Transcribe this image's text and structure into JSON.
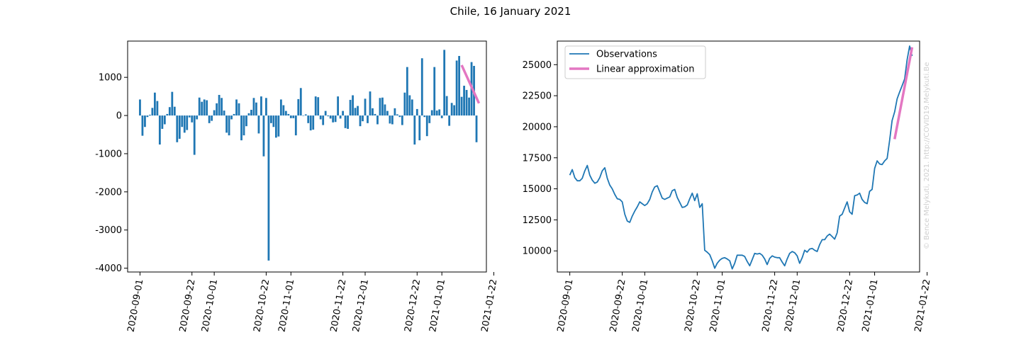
{
  "figure": {
    "title": "Chile, 16 January 2021",
    "watermark": "© Bence Melykuti, 2021. http://COVID19.Melykuti.Be"
  },
  "colors": {
    "bars": "#1f77b4",
    "observations": "#1f77b4",
    "approximation": "#e377c2"
  },
  "chart_data": [
    {
      "type": "bar",
      "ylim": [
        -4100,
        1950
      ],
      "yticks": [
        -4000,
        -3000,
        -2000,
        -1000,
        0,
        1000
      ],
      "x_start": "2020-09-01",
      "xlim": [
        "2020-08-27",
        "2021-01-19"
      ],
      "xticks": [
        "2020-09-01",
        "2020-09-22",
        "2020-10-01",
        "2020-10-22",
        "2020-11-01",
        "2020-11-22",
        "2020-12-01",
        "2020-12-22",
        "2021-01-01",
        "2021-01-22"
      ],
      "values": [
        420,
        -530,
        -300,
        -40,
        20,
        200,
        600,
        380,
        -760,
        -350,
        -230,
        40,
        220,
        620,
        230,
        -700,
        -610,
        -300,
        -450,
        -380,
        -50,
        -180,
        -1030,
        -100,
        470,
        360,
        420,
        400,
        -200,
        -140,
        140,
        320,
        540,
        460,
        130,
        -450,
        -520,
        -100,
        40,
        420,
        320,
        -650,
        -520,
        -280,
        60,
        150,
        460,
        340,
        -470,
        500,
        -1070,
        460,
        -3800,
        -200,
        -300,
        -580,
        -550,
        420,
        270,
        120,
        40,
        -70,
        -70,
        -520,
        430,
        720,
        -10,
        30,
        -200,
        -390,
        -370,
        500,
        480,
        -100,
        -250,
        120,
        -20,
        -80,
        -180,
        -170,
        500,
        -80,
        120,
        -330,
        -350,
        410,
        530,
        200,
        250,
        -280,
        -150,
        440,
        -200,
        630,
        190,
        40,
        -230,
        460,
        470,
        290,
        120,
        -210,
        -230,
        190,
        30,
        -40,
        -250,
        600,
        1270,
        530,
        420,
        -760,
        170,
        -650,
        1500,
        -40,
        -540,
        -200,
        140,
        1270,
        130,
        160,
        -70,
        1720,
        510,
        -270,
        330,
        270,
        1440,
        1560,
        490,
        780,
        670,
        470,
        1400,
        1300,
        -700
      ],
      "approximation": {
        "x_start": "2021-01-09",
        "y_start": 1320,
        "x_end": "2021-01-16",
        "y_end": 320
      }
    },
    {
      "type": "line",
      "ylim": [
        8300,
        26900
      ],
      "yticks": [
        10000,
        12500,
        15000,
        17500,
        20000,
        22500,
        25000
      ],
      "x_start": "2020-09-01",
      "xlim": [
        "2020-08-27",
        "2021-01-19"
      ],
      "xticks": [
        "2020-09-01",
        "2020-09-22",
        "2020-10-01",
        "2020-10-22",
        "2020-11-01",
        "2020-11-22",
        "2020-12-01",
        "2020-12-22",
        "2021-01-01",
        "2021-01-22"
      ],
      "values": [
        16100,
        16550,
        15900,
        15650,
        15650,
        15850,
        16450,
        16880,
        16100,
        15700,
        15450,
        15550,
        15900,
        16450,
        16700,
        15850,
        15300,
        15000,
        14550,
        14200,
        14150,
        13950,
        12950,
        12400,
        12300,
        12800,
        13200,
        13550,
        13950,
        13800,
        13650,
        13800,
        14150,
        14750,
        15150,
        15250,
        14750,
        14250,
        14150,
        14250,
        14350,
        14850,
        14950,
        14300,
        13900,
        13500,
        13550,
        13700,
        14200,
        14650,
        14050,
        14600,
        13500,
        13800,
        10050,
        9900,
        9700,
        9200,
        8600,
        9000,
        9250,
        9400,
        9450,
        9350,
        9200,
        8550,
        9000,
        9650,
        9650,
        9650,
        9550,
        9150,
        8800,
        9300,
        9800,
        9750,
        9800,
        9650,
        9350,
        8900,
        9400,
        9600,
        9500,
        9450,
        9450,
        9100,
        8800,
        9350,
        9800,
        9950,
        9850,
        9600,
        9000,
        9450,
        10050,
        9900,
        10150,
        10200,
        10050,
        9950,
        10500,
        10900,
        10900,
        11200,
        11350,
        11150,
        10950,
        11450,
        12800,
        12950,
        13450,
        13950,
        13150,
        12950,
        14450,
        14500,
        14650,
        14150,
        13900,
        13800,
        14800,
        14950,
        16650,
        17250,
        17000,
        16950,
        17250,
        17450,
        18900,
        20500,
        21200,
        22250,
        22800,
        23300,
        23850,
        25400,
        26500,
        25700
      ],
      "legend": [
        "Observations",
        "Linear approximation"
      ],
      "approximation": {
        "x_start": "2021-01-09",
        "y_start": 19000,
        "x_end": "2021-01-16",
        "y_end": 26400
      }
    }
  ]
}
